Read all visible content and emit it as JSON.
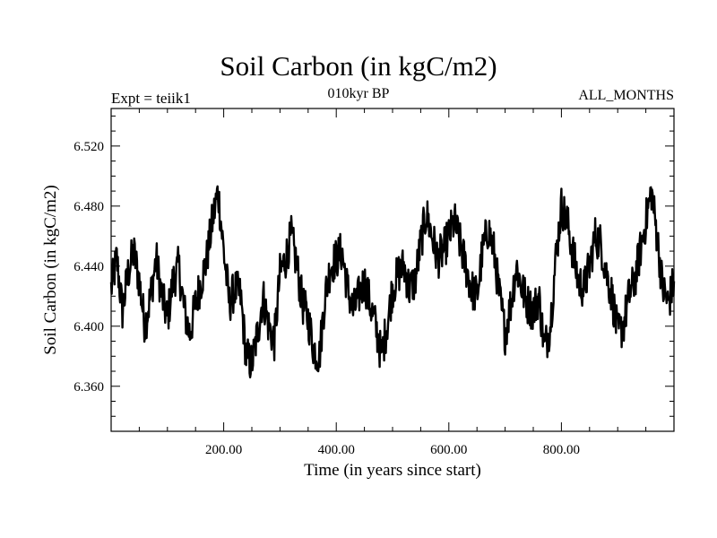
{
  "chart_data": {
    "type": "line",
    "title": "Soil Carbon (in kgC/m2)",
    "subtitle_left": "Expt = teiik1",
    "subtitle_center": "010kyr BP",
    "subtitle_right": "ALL_MONTHS",
    "xlabel": "Time (in years since start)",
    "ylabel": "Soil Carbon (in kgC/m2)",
    "xlim": [
      0,
      1000
    ],
    "ylim": [
      6.33,
      6.545
    ],
    "xticks": [
      200,
      400,
      600,
      800
    ],
    "xtick_labels": [
      "200.00",
      "400.00",
      "600.00",
      "800.00"
    ],
    "yticks": [
      6.36,
      6.4,
      6.44,
      6.48,
      6.52
    ],
    "ytick_labels": [
      "6.360",
      "6.400",
      "6.440",
      "6.480",
      "6.520"
    ],
    "grid": false,
    "series": [
      {
        "color": "#000000",
        "x": [
          0,
          10,
          20,
          30,
          40,
          50,
          60,
          70,
          80,
          90,
          100,
          110,
          120,
          130,
          140,
          150,
          160,
          170,
          180,
          190,
          200,
          210,
          220,
          230,
          240,
          250,
          260,
          270,
          280,
          290,
          300,
          310,
          320,
          330,
          340,
          350,
          360,
          370,
          380,
          390,
          400,
          410,
          420,
          430,
          440,
          450,
          460,
          470,
          480,
          490,
          500,
          510,
          520,
          530,
          540,
          550,
          560,
          570,
          580,
          590,
          600,
          610,
          620,
          630,
          640,
          650,
          660,
          670,
          680,
          690,
          700,
          710,
          720,
          730,
          740,
          750,
          760,
          770,
          780,
          790,
          800,
          810,
          820,
          830,
          840,
          850,
          860,
          870,
          880,
          890,
          900,
          910,
          920,
          930,
          940,
          950,
          960,
          970,
          980,
          990,
          1000
        ],
        "y": [
          6.425,
          6.445,
          6.41,
          6.435,
          6.45,
          6.43,
          6.4,
          6.42,
          6.445,
          6.42,
          6.405,
          6.43,
          6.44,
          6.41,
          6.395,
          6.415,
          6.43,
          6.445,
          6.47,
          6.49,
          6.45,
          6.415,
          6.425,
          6.42,
          6.38,
          6.375,
          6.395,
          6.42,
          6.4,
          6.39,
          6.435,
          6.445,
          6.46,
          6.44,
          6.415,
          6.405,
          6.385,
          6.38,
          6.42,
          6.44,
          6.445,
          6.45,
          6.425,
          6.41,
          6.42,
          6.43,
          6.415,
          6.4,
          6.38,
          6.4,
          6.425,
          6.435,
          6.44,
          6.425,
          6.43,
          6.455,
          6.475,
          6.46,
          6.445,
          6.45,
          6.46,
          6.47,
          6.455,
          6.44,
          6.425,
          6.42,
          6.45,
          6.465,
          6.45,
          6.42,
          6.395,
          6.415,
          6.44,
          6.425,
          6.415,
          6.41,
          6.42,
          6.385,
          6.4,
          6.445,
          6.48,
          6.47,
          6.45,
          6.43,
          6.425,
          6.44,
          6.46,
          6.455,
          6.435,
          6.42,
          6.395,
          6.4,
          6.42,
          6.43,
          6.45,
          6.47,
          6.49,
          6.46,
          6.425,
          6.415,
          6.43
        ]
      }
    ]
  }
}
